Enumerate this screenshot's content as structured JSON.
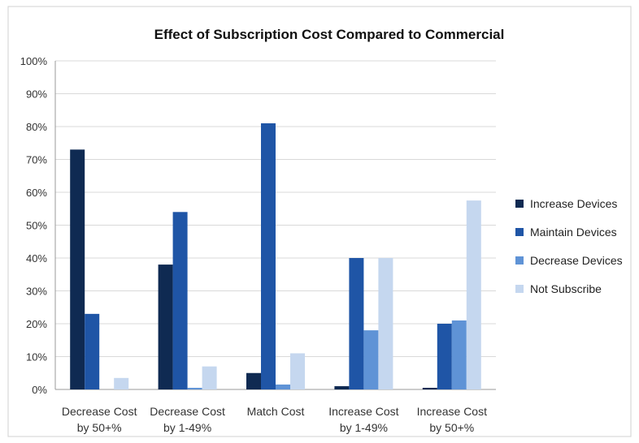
{
  "chart_data": {
    "type": "bar",
    "title": "Effect of Subscription Cost Compared to Commercial",
    "categories": [
      [
        "Decrease Cost",
        "by 50+%"
      ],
      [
        "Decrease Cost",
        "by 1-49%"
      ],
      [
        "Match Cost"
      ],
      [
        "Increase Cost",
        "by 1-49%"
      ],
      [
        "Increase Cost",
        "by 50+%"
      ]
    ],
    "series": [
      {
        "name": "Increase Devices",
        "color": "#0f2a52",
        "values": [
          73,
          38,
          5,
          1,
          0.5
        ]
      },
      {
        "name": "Maintain Devices",
        "color": "#1f55a6",
        "values": [
          23,
          54,
          81,
          40,
          20
        ]
      },
      {
        "name": "Decrease Devices",
        "color": "#5f93d6",
        "values": [
          0,
          0.5,
          1.5,
          18,
          21
        ]
      },
      {
        "name": "Not Subscribe",
        "color": "#c5d7ef",
        "values": [
          3.5,
          7,
          11,
          40,
          57.5
        ]
      }
    ],
    "ylim": [
      0,
      100
    ],
    "yticks": [
      "0%",
      "10%",
      "20%",
      "30%",
      "40%",
      "50%",
      "60%",
      "70%",
      "80%",
      "90%",
      "100%"
    ],
    "xlabel": "",
    "ylabel": "",
    "grid": true,
    "legend_position": "right"
  }
}
